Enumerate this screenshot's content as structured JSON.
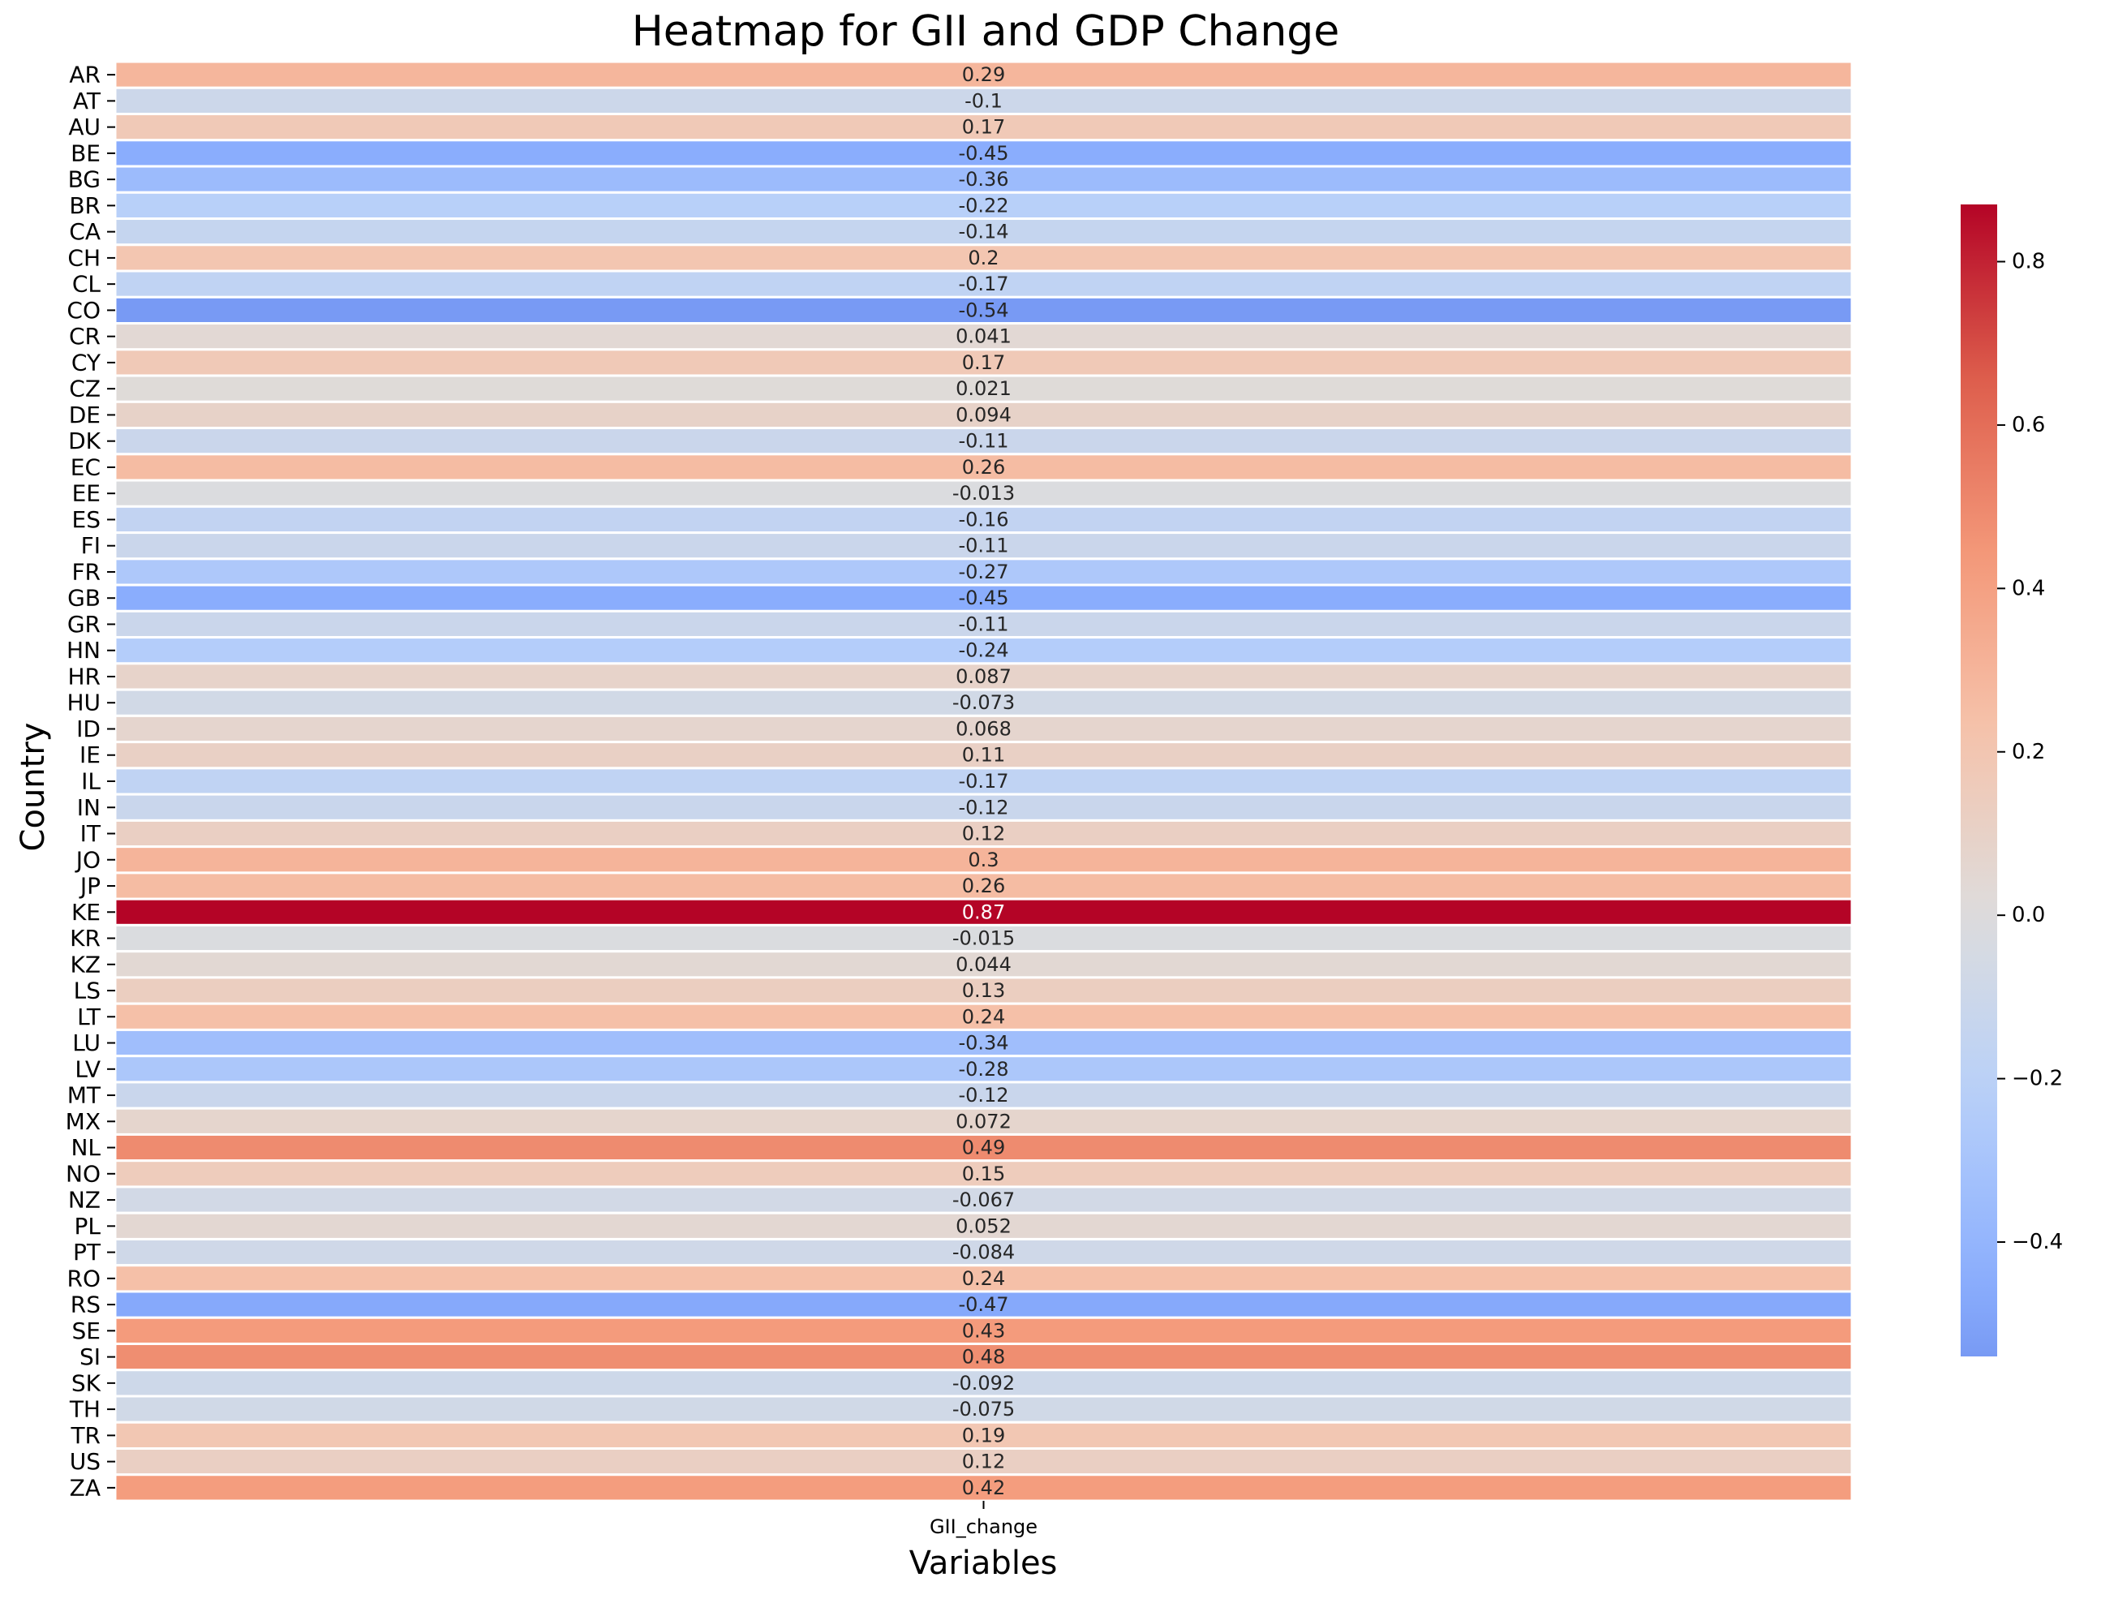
{
  "chart_data": {
    "type": "heatmap",
    "title": "Heatmap for GII and GDP Change",
    "xlabel": "Variables",
    "ylabel": "Country",
    "columns": [
      "GII_change"
    ],
    "rows": [
      "AR",
      "AT",
      "AU",
      "BE",
      "BG",
      "BR",
      "CA",
      "CH",
      "CL",
      "CO",
      "CR",
      "CY",
      "CZ",
      "DE",
      "DK",
      "EC",
      "EE",
      "ES",
      "FI",
      "FR",
      "GB",
      "GR",
      "HN",
      "HR",
      "HU",
      "ID",
      "IE",
      "IL",
      "IN",
      "IT",
      "JO",
      "JP",
      "KE",
      "KR",
      "KZ",
      "LS",
      "LT",
      "LU",
      "LV",
      "MT",
      "MX",
      "NL",
      "NO",
      "NZ",
      "PL",
      "PT",
      "RO",
      "RS",
      "SE",
      "SI",
      "SK",
      "TH",
      "TR",
      "US",
      "ZA"
    ],
    "values": [
      0.29,
      -0.1,
      0.17,
      -0.45,
      -0.36,
      -0.22,
      -0.14,
      0.2,
      -0.17,
      -0.54,
      0.041,
      0.17,
      0.021,
      0.094,
      -0.11,
      0.26,
      -0.013,
      -0.16,
      -0.11,
      -0.27,
      -0.45,
      -0.11,
      -0.24,
      0.087,
      -0.073,
      0.068,
      0.11,
      -0.17,
      -0.12,
      0.12,
      0.3,
      0.26,
      0.87,
      -0.015,
      0.044,
      0.13,
      0.24,
      -0.34,
      -0.28,
      -0.12,
      0.072,
      0.49,
      0.15,
      -0.067,
      0.052,
      -0.084,
      0.24,
      -0.47,
      0.43,
      0.48,
      -0.092,
      -0.075,
      0.19,
      0.12,
      0.42
    ],
    "value_labels": [
      "0.29",
      "-0.1",
      "0.17",
      "-0.45",
      "-0.36",
      "-0.22",
      "-0.14",
      "0.2",
      "-0.17",
      "-0.54",
      "0.041",
      "0.17",
      "0.021",
      "0.094",
      "-0.11",
      "0.26",
      "-0.013",
      "-0.16",
      "-0.11",
      "-0.27",
      "-0.45",
      "-0.11",
      "-0.24",
      "0.087",
      "-0.073",
      "0.068",
      "0.11",
      "-0.17",
      "-0.12",
      "0.12",
      "0.3",
      "0.26",
      "0.87",
      "-0.015",
      "0.044",
      "0.13",
      "0.24",
      "-0.34",
      "-0.28",
      "-0.12",
      "0.072",
      "0.49",
      "0.15",
      "-0.067",
      "0.052",
      "-0.084",
      "0.24",
      "-0.47",
      "0.43",
      "0.48",
      "-0.092",
      "-0.075",
      "0.19",
      "0.12",
      "0.42"
    ],
    "colormap": "coolwarm",
    "colorbar": {
      "vmin": -0.54,
      "vmax": 0.87,
      "ticks": [
        0.8,
        0.6,
        0.4,
        0.2,
        0.0,
        -0.2,
        -0.4
      ],
      "tick_labels": [
        "0.8",
        "0.6",
        "0.4",
        "0.2",
        "0.0",
        "−0.2",
        "−0.4"
      ]
    },
    "grid": false,
    "legend": "colorbar-right"
  }
}
